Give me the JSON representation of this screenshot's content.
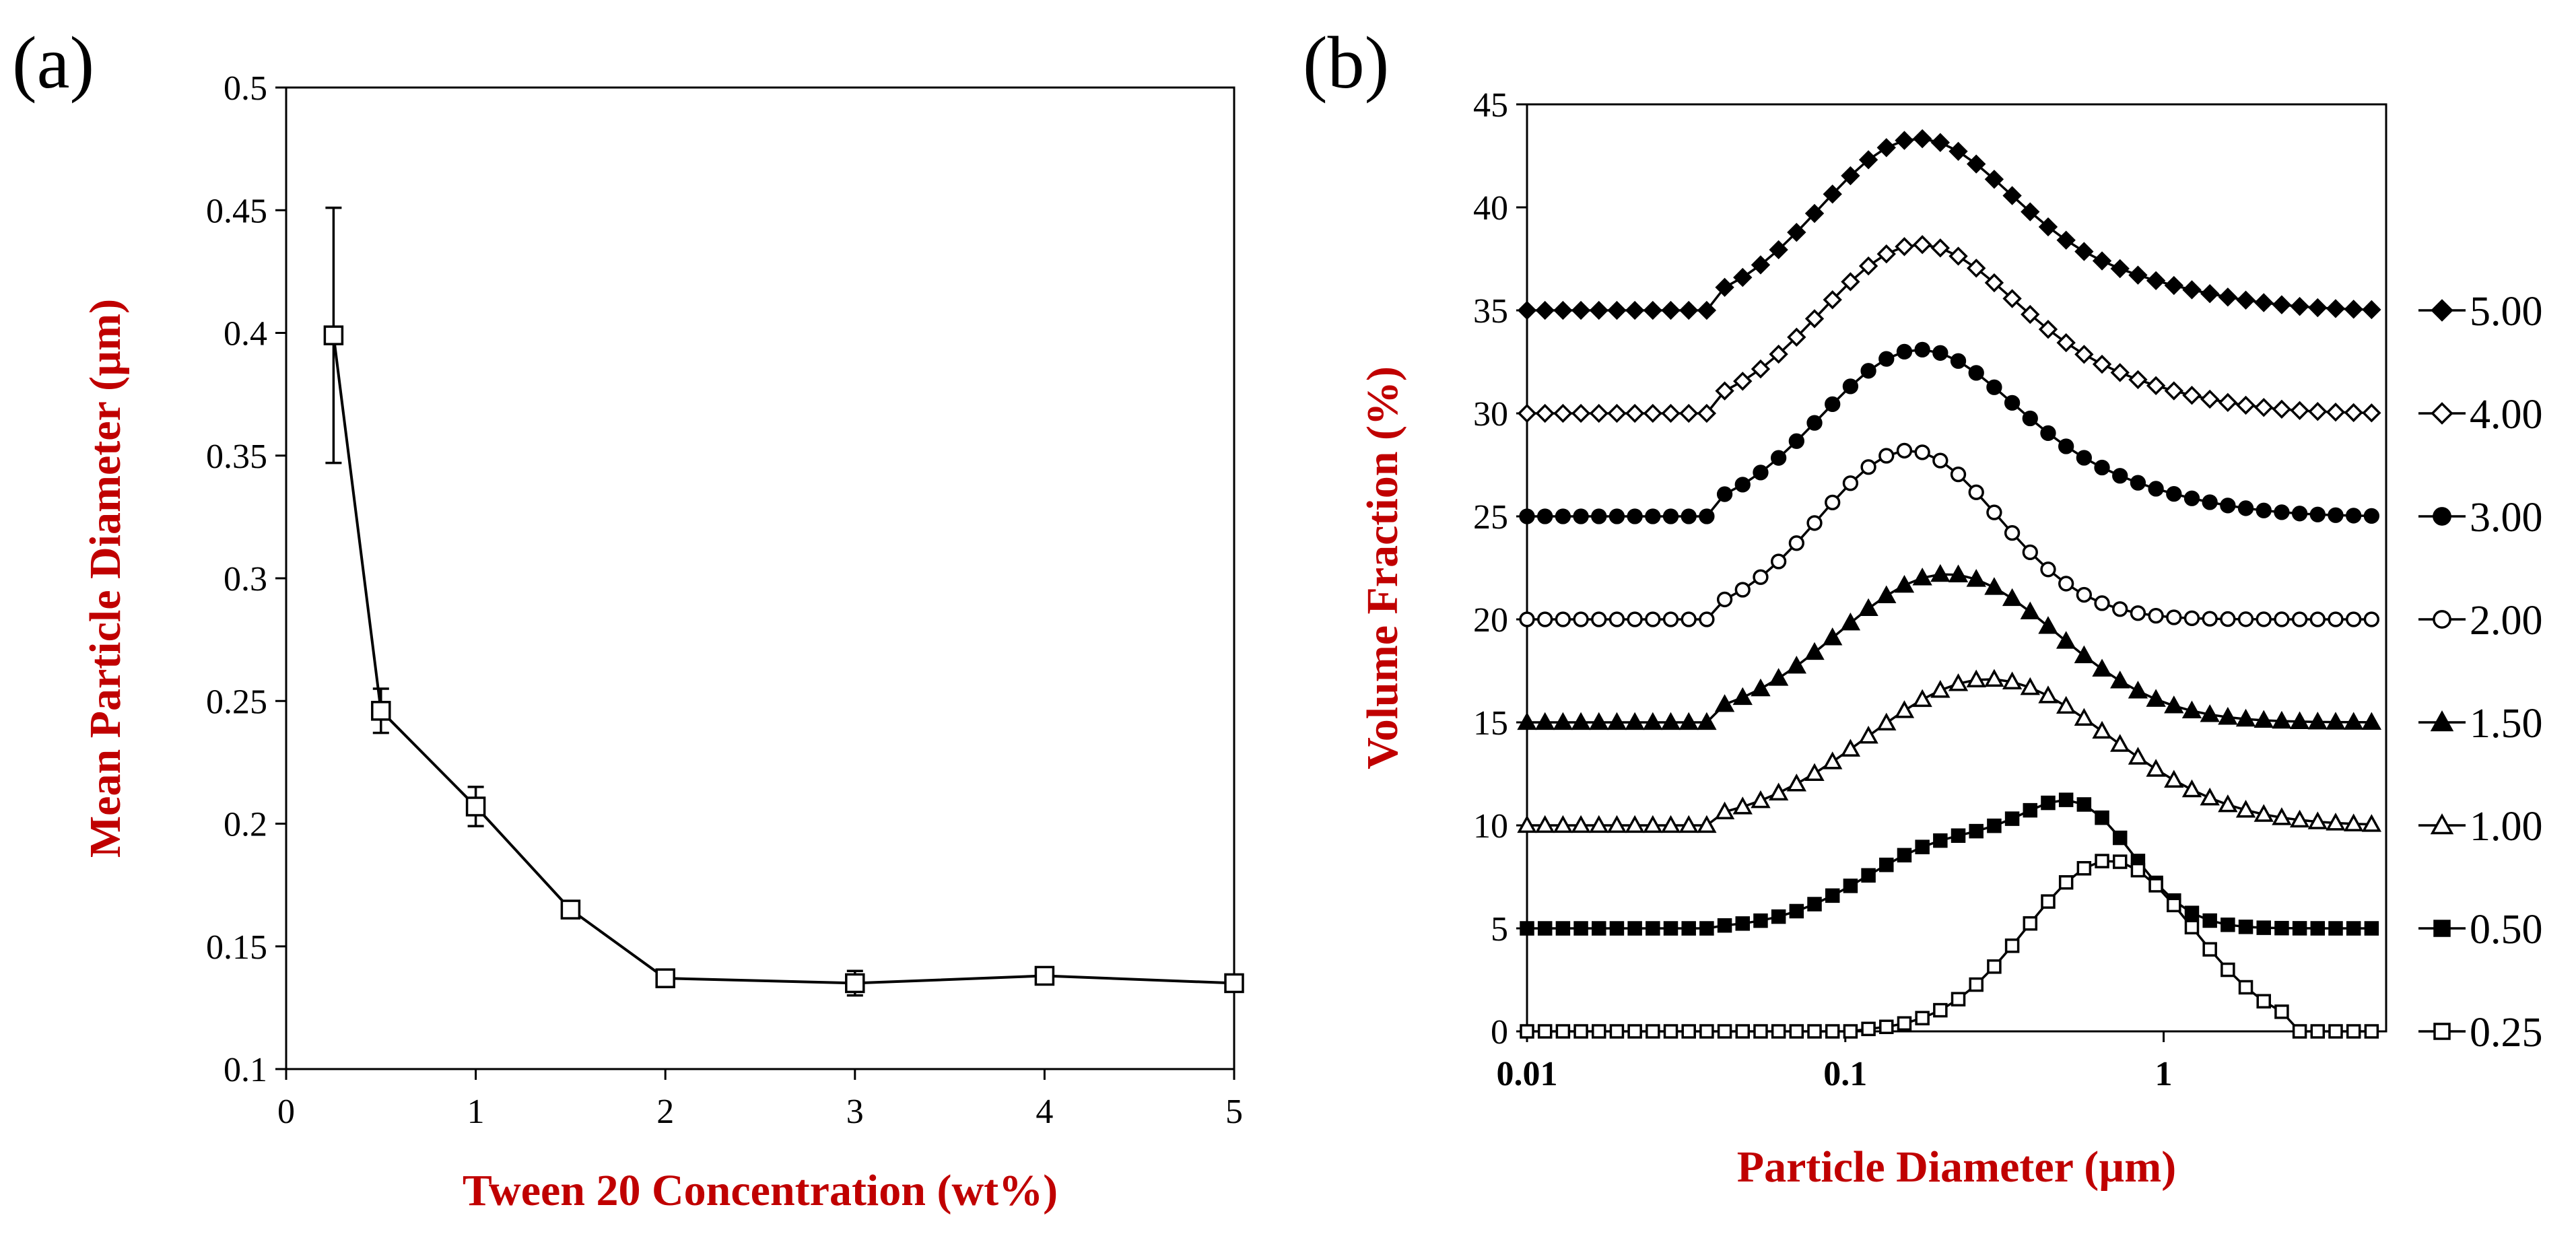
{
  "panels": {
    "a": {
      "label": "(a)"
    },
    "b": {
      "label": "(b)"
    }
  },
  "colors": {
    "axis_title": "#c00000",
    "ink": "#000000",
    "open_fill": "#ffffff"
  },
  "chart_data": [
    {
      "id": "a",
      "type": "line",
      "title": "",
      "xlabel": "Tween 20 Concentration (wt%)",
      "ylabel": "Mean Particle Diameter (µm)",
      "xlim": [
        0,
        5
      ],
      "ylim": [
        0.1,
        0.5
      ],
      "xticks": [
        "0",
        "1",
        "2",
        "3",
        "4",
        "5"
      ],
      "yticks": [
        "0.1",
        "0.15",
        "0.2",
        "0.25",
        "0.3",
        "0.35",
        "0.4",
        "0.45",
        "0.5"
      ],
      "grid": false,
      "series": [
        {
          "name": "Mean particle diameter",
          "marker": "open-square",
          "x": [
            0.25,
            0.5,
            1.0,
            1.5,
            2.0,
            3.0,
            4.0,
            5.0
          ],
          "y": [
            0.399,
            0.246,
            0.207,
            0.165,
            0.137,
            0.135,
            0.138,
            0.135
          ],
          "err": [
            0.052,
            0.009,
            0.008,
            0.003,
            0.002,
            0.005,
            0.003,
            0.002
          ]
        }
      ]
    },
    {
      "id": "b",
      "type": "line",
      "title": "",
      "xlabel": "Particle Diameter (µm)",
      "ylabel": "Volume Fraction (%)",
      "xscale": "log",
      "xlim": [
        0.01,
        5
      ],
      "ylim": [
        0,
        45
      ],
      "xticks": [
        "0.01",
        "0.1",
        "1"
      ],
      "yticks": [
        "0",
        "5",
        "10",
        "15",
        "20",
        "25",
        "30",
        "35",
        "40",
        "45"
      ],
      "grid": false,
      "legend_position": "right",
      "legend": [
        "5.00",
        "4.00",
        "3.00",
        "2.00",
        "1.50",
        "1.00",
        "0.50",
        "0.25"
      ],
      "series": [
        {
          "name": "5.00",
          "marker": "filled-diamond",
          "offset": 35,
          "peaks": [
            {
              "log_center": -0.78,
              "width": 0.3,
              "height": 8.2
            },
            {
              "log_center": -0.15,
              "width": 0.3,
              "height": 1.2
            }
          ],
          "x_range": [
            0.01,
            4.5
          ]
        },
        {
          "name": "4.00",
          "marker": "open-diamond",
          "offset": 30,
          "peaks": [
            {
              "log_center": -0.78,
              "width": 0.3,
              "height": 8.0
            },
            {
              "log_center": -0.2,
              "width": 0.3,
              "height": 1.2
            }
          ],
          "x_range": [
            0.01,
            4.5
          ]
        },
        {
          "name": "3.00",
          "marker": "filled-circle",
          "offset": 25,
          "peaks": [
            {
              "log_center": -0.78,
              "width": 0.3,
              "height": 7.9
            },
            {
              "log_center": -0.2,
              "width": 0.3,
              "height": 1.2
            }
          ],
          "x_range": [
            0.01,
            4.5
          ]
        },
        {
          "name": "2.00",
          "marker": "open-circle",
          "offset": 20,
          "peaks": [
            {
              "log_center": -0.8,
              "width": 0.28,
              "height": 8.2
            }
          ],
          "x_range": [
            0.01,
            4.5
          ]
        },
        {
          "name": "1.50",
          "marker": "filled-triangle",
          "offset": 15,
          "peaks": [
            {
              "log_center": -0.68,
              "width": 0.34,
              "height": 7.2
            }
          ],
          "x_range": [
            0.01,
            4.5
          ]
        },
        {
          "name": "1.00",
          "marker": "open-triangle",
          "offset": 10,
          "peaks": [
            {
              "log_center": -0.55,
              "width": 0.38,
              "height": 7.1
            }
          ],
          "x_range": [
            0.01,
            4.5
          ]
        },
        {
          "name": "0.50",
          "marker": "filled-square",
          "offset": 5,
          "peaks": [
            {
              "log_center": -0.65,
              "width": 0.28,
              "height": 4.2
            },
            {
              "log_center": -0.25,
              "width": 0.17,
              "height": 4.5
            }
          ],
          "x_range": [
            0.01,
            4.5
          ]
        },
        {
          "name": "0.25",
          "marker": "open-square",
          "offset": 0,
          "peaks": [
            {
              "log_center": -0.17,
              "width": 0.26,
              "height": 8.3
            }
          ],
          "x_range": [
            0.01,
            4.5
          ],
          "zero_outside": [
            0.11,
            2.4
          ]
        }
      ]
    }
  ]
}
